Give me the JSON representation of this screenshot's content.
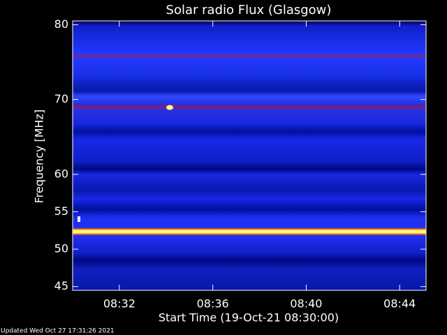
{
  "chart_data": {
    "type": "spectrogram",
    "title": "Solar radio Flux (Glasgow)",
    "y_label": "Frequency [MHz]",
    "x_label": "Start Time (19-Oct-21 08:30:00)",
    "footer": "Updated Wed Oct 27 17:31:26 2021",
    "ylim": [
      44.5,
      80.5
    ],
    "yticks": [
      45,
      50,
      55,
      60,
      70,
      80
    ],
    "xlim": [
      510,
      525.13
    ],
    "xticks": [
      {
        "value": 512,
        "label": "08:32"
      },
      {
        "value": 516,
        "label": "08:36"
      },
      {
        "value": 520,
        "label": "08:40"
      },
      {
        "value": 524,
        "label": "08:44"
      }
    ]
  }
}
